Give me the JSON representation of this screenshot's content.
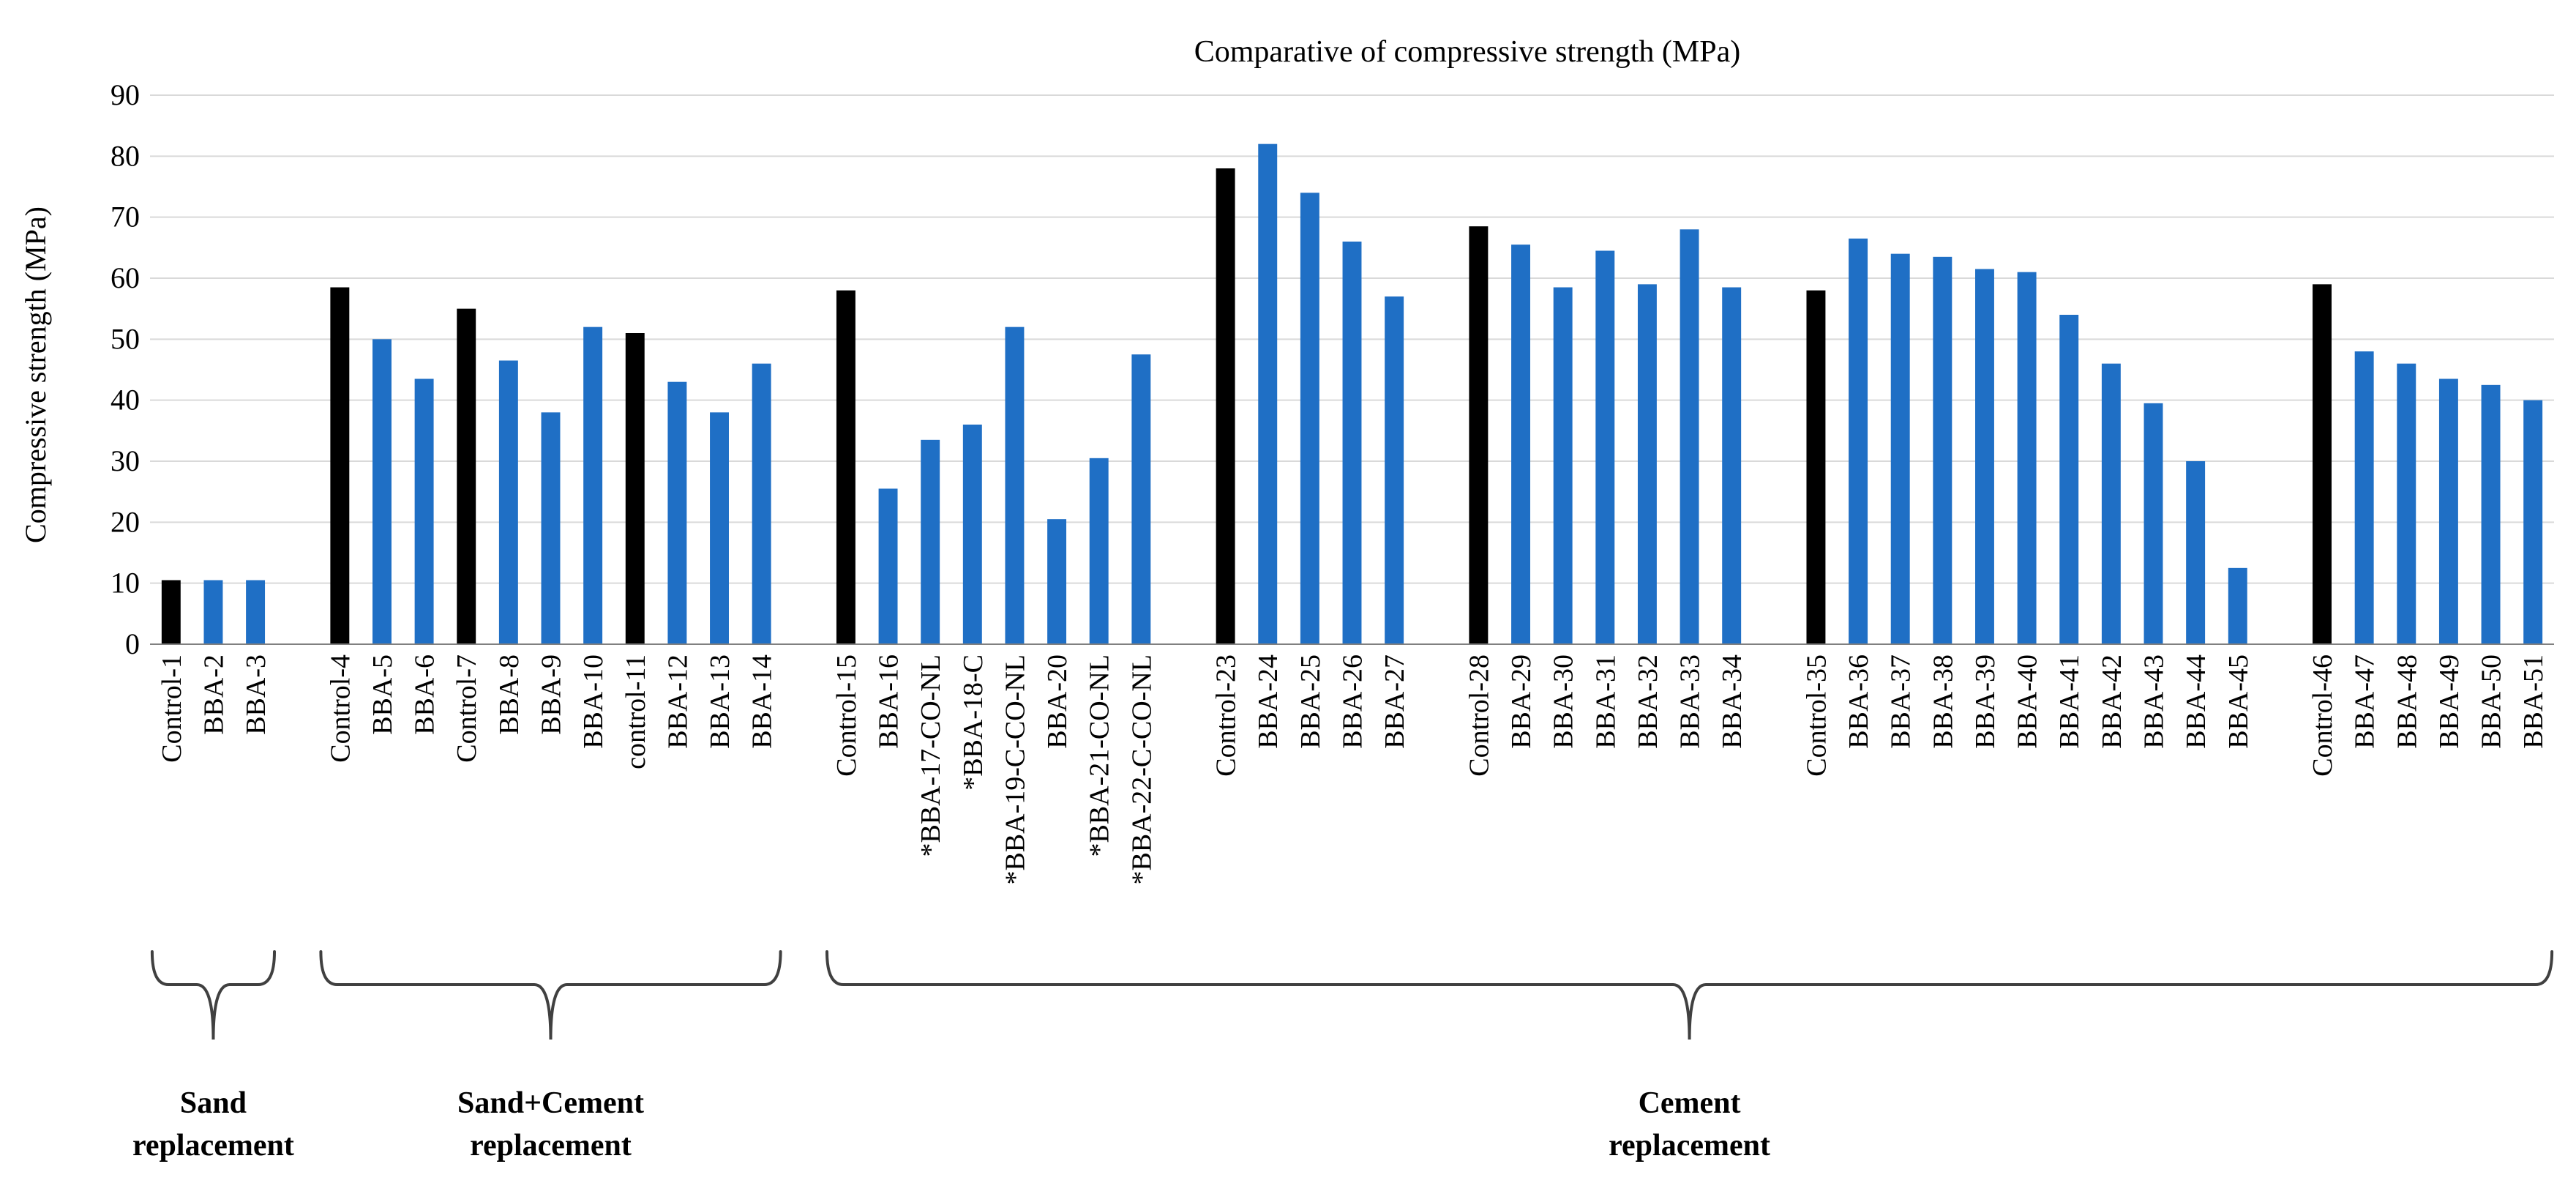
{
  "chart_data": {
    "type": "bar",
    "title": "Comparative of compressive strength (MPa)",
    "xlabel": "",
    "ylabel": "Compressive strength (MPa)",
    "ylim": [
      0,
      90
    ],
    "yticks": [
      0,
      10,
      20,
      30,
      40,
      50,
      60,
      70,
      80,
      90
    ],
    "grid": true,
    "colors": {
      "control": "#000000",
      "bba": "#1f6fc5",
      "grid": "#d9d9d9",
      "axis": "#808080"
    },
    "categories": [
      "Control-1",
      "BBA-2",
      "BBA-3",
      "",
      "Control-4",
      "BBA-5",
      "BBA-6",
      "Control-7",
      "BBA-8",
      "BBA-9",
      "BBA-10",
      "control-11",
      "BBA-12",
      "BBA-13",
      "BBA-14",
      "",
      "Control-15",
      "BBA-16",
      "*BBA-17-CO-NL",
      "*BBA-18-C",
      "*BBA-19-C-CO-NL",
      "BBA-20",
      "*BBA-21-CO-NL",
      "*BBA-22-C-CO-NL",
      "",
      "Control-23",
      "BBA-24",
      "BBA-25",
      "BBA-26",
      "BBA-27",
      "",
      "Control-28",
      "BBA-29",
      "BBA-30",
      "BBA-31",
      "BBA-32",
      "BBA-33",
      "BBA-34",
      "",
      "Control-35",
      "BBA-36",
      "BBA-37",
      "BBA-38",
      "BBA-39",
      "BBA-40",
      "BBA-41",
      "BBA-42",
      "BBA-43",
      "BBA-44",
      "BBA-45",
      "",
      "Control-46",
      "BBA-47",
      "BBA-48",
      "BBA-49",
      "BBA-50",
      "BBA-51"
    ],
    "values": [
      10.5,
      10.5,
      10.5,
      null,
      58.5,
      50,
      43.5,
      55,
      46.5,
      38,
      52,
      51,
      43,
      38,
      46,
      null,
      58,
      25.5,
      33.5,
      36,
      52,
      20.5,
      30.5,
      47.5,
      null,
      78,
      82,
      74,
      66,
      57,
      null,
      68.5,
      65.5,
      58.5,
      64.5,
      59,
      68,
      58.5,
      null,
      58,
      66.5,
      64,
      63.5,
      61.5,
      61,
      54,
      46,
      39.5,
      30,
      12.5,
      null,
      59,
      48,
      46,
      43.5,
      42.5,
      40
    ],
    "groups": [
      {
        "label_line1": "Sand",
        "label_line2": "replacement",
        "first": 0,
        "last": 2
      },
      {
        "label_line1": "Sand+Cement",
        "label_line2": "replacement",
        "first": 4,
        "last": 14
      },
      {
        "label_line1": "Cement",
        "label_line2": "replacement",
        "first": 16,
        "last": 56
      }
    ]
  }
}
